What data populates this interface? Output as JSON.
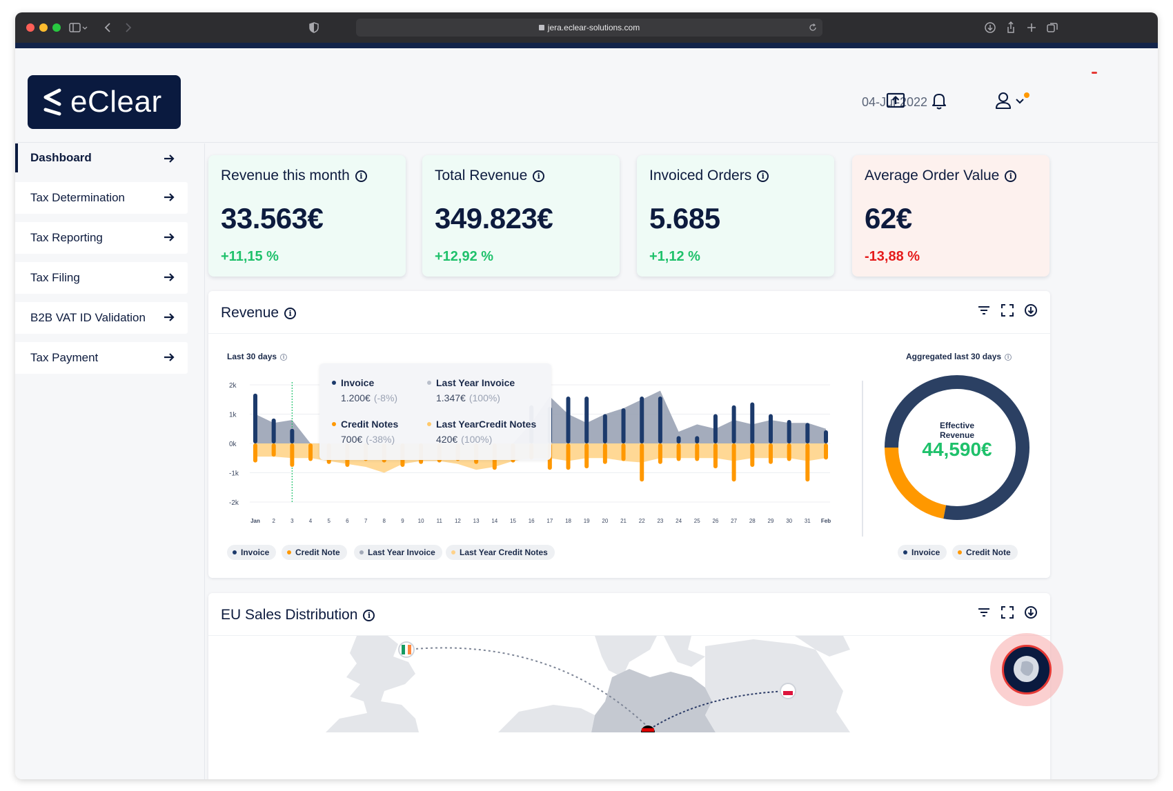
{
  "browser": {
    "url": "jera.eclear-solutions.com"
  },
  "header": {
    "logo_text": "eClear",
    "date": "04-Jul-2022"
  },
  "sidebar": {
    "items": [
      {
        "label": "Dashboard",
        "active": true
      },
      {
        "label": "Tax Determination",
        "active": false
      },
      {
        "label": "Tax Reporting",
        "active": false
      },
      {
        "label": "Tax Filing",
        "active": false
      },
      {
        "label": "B2B VAT ID Validation",
        "active": false
      },
      {
        "label": "Tax Payment",
        "active": false
      }
    ]
  },
  "kpis": [
    {
      "title": "Revenue this month",
      "value": "33.563€",
      "change": "+11,15 %",
      "trend": "up"
    },
    {
      "title": "Total Revenue",
      "value": "349.823€",
      "change": "+12,92 %",
      "trend": "up"
    },
    {
      "title": "Invoiced Orders",
      "value": "5.685",
      "change": "+1,12 %",
      "trend": "up"
    },
    {
      "title": "Average Order Value",
      "value": "62€",
      "change": "-13,88 %",
      "trend": "down"
    }
  ],
  "revenue_panel": {
    "title": "Revenue",
    "chart_subtitle": "Last 30 days",
    "donut_subtitle": "Aggregated last 30 days",
    "tooltip": {
      "items": [
        {
          "label": "Invoice",
          "value": "1.200€",
          "pct": "(-8%)",
          "color": "#1c3a6b"
        },
        {
          "label": "Last Year Invoice",
          "value": "1.347€",
          "pct": "(100%)",
          "color": "#b9bfcb"
        },
        {
          "label": "Credit Notes",
          "value": "700€",
          "pct": "(-38%)",
          "color": "#ff9800"
        },
        {
          "label": "Last YearCredit Notes",
          "value": "420€",
          "pct": "(100%)",
          "color": "#ffc96b"
        }
      ]
    },
    "legend": [
      {
        "label": "Invoice",
        "color": "#1c3a6b"
      },
      {
        "label": "Credit Note",
        "color": "#ff9800"
      },
      {
        "label": "Last Year Invoice",
        "color": "#a2a9b8"
      },
      {
        "label": "Last Year Credit Notes",
        "color": "#ffd28a"
      }
    ],
    "donut_legend": [
      {
        "label": "Invoice",
        "color": "#1c3a6b"
      },
      {
        "label": "Credit Note",
        "color": "#ff9800"
      }
    ],
    "donut": {
      "label": "Effective Revenue",
      "value": "44,590€"
    }
  },
  "chart_data": [
    {
      "type": "bar",
      "title": "",
      "xlabel": "",
      "ylabel": "",
      "categories": [
        "Jan",
        "2",
        "3",
        "4",
        "5",
        "6",
        "7",
        "8",
        "9",
        "10",
        "11",
        "12",
        "13",
        "14",
        "15",
        "16",
        "17",
        "18",
        "19",
        "20",
        "21",
        "22",
        "23",
        "24",
        "25",
        "26",
        "27",
        "28",
        "29",
        "30",
        "31",
        "Feb"
      ],
      "ylim": [
        -2000,
        2000
      ],
      "yticks": [
        "2k",
        "1k",
        "0k",
        "-1k",
        "-2k"
      ],
      "series": [
        {
          "name": "Invoice",
          "values": [
            1700,
            850,
            500,
            0,
            0,
            0,
            0,
            0,
            0,
            0,
            0,
            0,
            0,
            0,
            0,
            1300,
            1250,
            1600,
            1600,
            1000,
            1200,
            1600,
            1600,
            250,
            250,
            1000,
            1300,
            1400,
            1000,
            800,
            700,
            450
          ]
        },
        {
          "name": "Credit Note",
          "values": [
            -650,
            -450,
            -800,
            -600,
            -700,
            -800,
            -600,
            -650,
            -800,
            -700,
            -650,
            -600,
            -700,
            -900,
            -650,
            -550,
            -900,
            -900,
            -850,
            -700,
            -600,
            -1300,
            -700,
            -600,
            -600,
            -850,
            -1300,
            -800,
            -700,
            -600,
            -1300,
            -550
          ]
        },
        {
          "name": "Last Year Invoice",
          "values": [
            1000,
            700,
            800,
            0,
            0,
            0,
            0,
            0,
            0,
            0,
            0,
            0,
            0,
            0,
            0,
            700,
            1600,
            1000,
            700,
            1000,
            1200,
            1500,
            1800,
            400,
            650,
            500,
            800,
            650,
            800,
            700,
            700,
            500
          ]
        },
        {
          "name": "Last Year Credit Notes",
          "values": [
            -450,
            -450,
            -500,
            -500,
            -600,
            -700,
            -800,
            -1000,
            -700,
            -600,
            -600,
            -700,
            -900,
            -800,
            -600,
            -500,
            -500,
            -600,
            -500,
            -500,
            -600,
            -650,
            -500,
            -500,
            -500,
            -500,
            -600,
            -500,
            -500,
            -500,
            -600,
            -500
          ]
        }
      ]
    },
    {
      "type": "pie",
      "title": "",
      "categories": [
        "Invoice",
        "Credit Note"
      ],
      "values": [
        78,
        22
      ]
    }
  ],
  "eu_panel": {
    "title": "EU Sales Distribution"
  }
}
